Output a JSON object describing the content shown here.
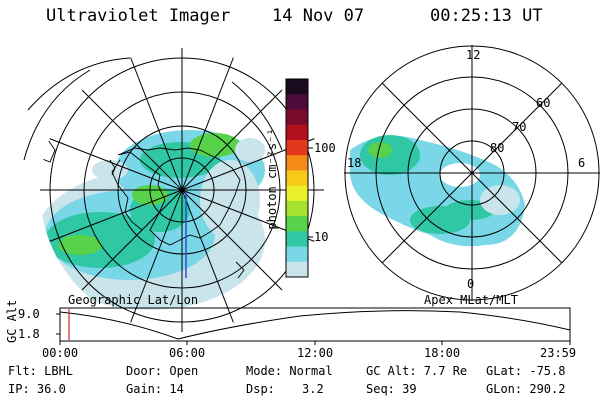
{
  "header": {
    "instrument": "Ultraviolet Imager",
    "date": "14 Nov 07",
    "time": "00:25:13 UT"
  },
  "colorbar": {
    "unit_label": "photon cm⁻²s⁻¹",
    "ticks": [
      "100",
      "10"
    ],
    "colors": [
      "#1a0a1e",
      "#4b0c3a",
      "#7a0a2a",
      "#b0101e",
      "#e2381b",
      "#f58a18",
      "#f7c918",
      "#e9f02a",
      "#a6e22f",
      "#57d24a",
      "#2fc7a4",
      "#7ad7e7",
      "#c9e4ea"
    ]
  },
  "left_map": {
    "label": "Geographic Lat/Lon"
  },
  "right_map": {
    "label": "Apex MLat/MLT",
    "mlt_labels": {
      "top": "12",
      "left": "18",
      "right": "6",
      "bottom": "0"
    },
    "lat_labels": [
      "60",
      "70",
      "80"
    ]
  },
  "altitude_plot": {
    "ylabel": "GC Alt",
    "yticks": [
      "9.0",
      "1.8"
    ],
    "xticks": [
      "00:00",
      "06:00",
      "12:00",
      "18:00",
      "23:59"
    ]
  },
  "info": {
    "row1": {
      "filter": "Flt: LBHL",
      "door": "Door: Open",
      "mode": "Mode: Normal",
      "gc_alt": "GC Alt: 7.7 Re",
      "glat": "GLat: -75.8"
    },
    "row2": {
      "ip": "IP: 36.0",
      "gain": "Gain: 14",
      "dsp_label": "Dsp:",
      "dsp_value": "3.2",
      "seq": "Seq: 39",
      "glon": "GLon: 290.2"
    }
  }
}
